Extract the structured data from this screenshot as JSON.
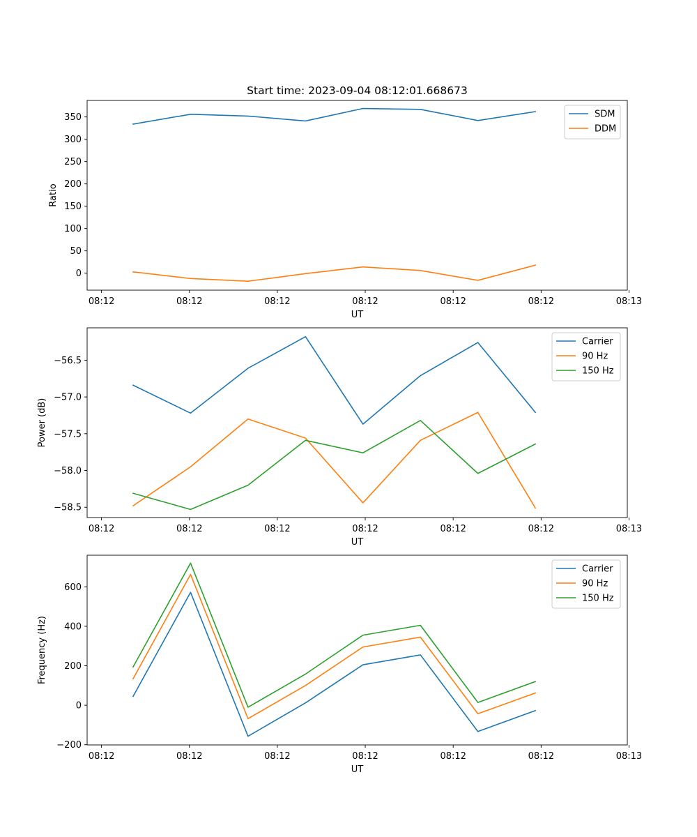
{
  "chart_data": [
    {
      "type": "line",
      "title": "Start time: 2023-09-04 08:12:01.668673",
      "xlabel": "UT",
      "ylabel": "Ratio",
      "x": [
        1,
        2,
        3,
        4,
        5,
        6,
        7,
        8
      ],
      "xlim": [
        0.2,
        9.6
      ],
      "xticks": [
        0.45,
        1.98,
        3.51,
        5.04,
        6.57,
        8.1,
        9.63
      ],
      "xtick_labels": [
        "08:12",
        "08:12",
        "08:12",
        "08:12",
        "08:12",
        "08:12",
        "08:13"
      ],
      "ylim": [
        -38,
        387
      ],
      "yticks": [
        0,
        50,
        100,
        150,
        200,
        250,
        300,
        350
      ],
      "ytick_labels": [
        "0",
        "50",
        "100",
        "150",
        "200",
        "250",
        "300",
        "350"
      ],
      "legend_position": "upper right",
      "series": [
        {
          "name": "SDM",
          "color": "#1f77b4",
          "values": [
            334,
            356,
            352,
            341,
            369,
            367,
            342,
            362
          ]
        },
        {
          "name": "DDM",
          "color": "#ff7f0e",
          "values": [
            3,
            -12,
            -18,
            -1,
            14,
            6,
            -16,
            18
          ]
        }
      ]
    },
    {
      "type": "line",
      "title": "",
      "xlabel": "UT",
      "ylabel": "Power (dB)",
      "x": [
        1,
        2,
        3,
        4,
        5,
        6,
        7,
        8
      ],
      "xlim": [
        0.2,
        9.6
      ],
      "xticks": [
        0.45,
        1.98,
        3.51,
        5.04,
        6.57,
        8.1,
        9.63
      ],
      "xtick_labels": [
        "08:12",
        "08:12",
        "08:12",
        "08:12",
        "08:12",
        "08:12",
        "08:13"
      ],
      "ylim": [
        -58.64,
        -56.06
      ],
      "yticks": [
        -58.5,
        -58.0,
        -57.5,
        -57.0,
        -56.5
      ],
      "ytick_labels": [
        "−58.5",
        "−58.0",
        "−57.5",
        "−57.0",
        "−56.5"
      ],
      "legend_position": "upper right",
      "series": [
        {
          "name": "Carrier",
          "color": "#1f77b4",
          "values": [
            -56.84,
            -57.22,
            -56.61,
            -56.18,
            -57.37,
            -56.71,
            -56.26,
            -57.21
          ]
        },
        {
          "name": "90 Hz",
          "color": "#ff7f0e",
          "values": [
            -58.48,
            -57.95,
            -57.3,
            -57.56,
            -58.44,
            -57.59,
            -57.21,
            -58.51
          ]
        },
        {
          "name": "150 Hz",
          "color": "#2ca02c",
          "values": [
            -58.31,
            -58.53,
            -58.2,
            -57.59,
            -57.76,
            -57.32,
            -58.04,
            -57.64
          ]
        }
      ]
    },
    {
      "type": "line",
      "title": "",
      "xlabel": "UT",
      "ylabel": "Frequency (Hz)",
      "x": [
        1,
        2,
        3,
        4,
        5,
        6,
        7,
        8
      ],
      "xlim": [
        0.2,
        9.6
      ],
      "xticks": [
        0.45,
        1.98,
        3.51,
        5.04,
        6.57,
        8.1,
        9.63
      ],
      "xtick_labels": [
        "08:12",
        "08:12",
        "08:12",
        "08:12",
        "08:12",
        "08:12",
        "08:13"
      ],
      "ylim": [
        -201,
        760
      ],
      "yticks": [
        -200,
        0,
        200,
        400,
        600
      ],
      "ytick_labels": [
        "−200",
        "0",
        "200",
        "400",
        "600"
      ],
      "legend_position": "upper right",
      "series": [
        {
          "name": "Carrier",
          "color": "#1f77b4",
          "values": [
            45,
            572,
            -157,
            12,
            205,
            255,
            -133,
            -27
          ]
        },
        {
          "name": "90 Hz",
          "color": "#ff7f0e",
          "values": [
            134,
            663,
            -68,
            100,
            295,
            345,
            -43,
            62
          ]
        },
        {
          "name": "150 Hz",
          "color": "#2ca02c",
          "values": [
            194,
            720,
            -10,
            158,
            355,
            405,
            14,
            120
          ]
        }
      ]
    }
  ]
}
